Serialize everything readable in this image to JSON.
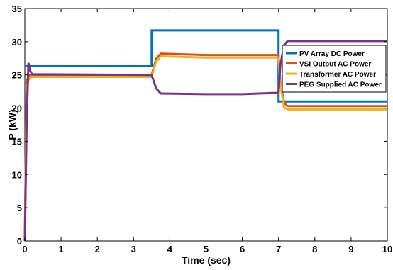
{
  "chart_data": {
    "type": "line",
    "xlabel": "Time (sec)",
    "ylabel": "P (kW)",
    "xlim": [
      0,
      10
    ],
    "ylim": [
      0,
      35
    ],
    "xticks": [
      0,
      1,
      2,
      3,
      4,
      5,
      6,
      7,
      8,
      9,
      10
    ],
    "yticks": [
      0,
      5,
      10,
      15,
      20,
      25,
      30,
      35
    ],
    "grid": false,
    "legend_position": "top-right",
    "series": [
      {
        "name": "PV Array DC Power",
        "color": "#0072BD",
        "x": [
          0,
          0.01,
          3.5,
          3.5,
          7.0,
          7.0,
          10
        ],
        "y": [
          26.3,
          26.3,
          26.3,
          31.7,
          31.7,
          21.0,
          21.0
        ]
      },
      {
        "name": "VSI Output AC Power",
        "color": "#D95319",
        "x": [
          0,
          0.05,
          0.1,
          0.15,
          0.2,
          3.5,
          3.62,
          3.75,
          5.0,
          6.0,
          7.0,
          7.05,
          7.15,
          7.25,
          10
        ],
        "y": [
          0,
          24.0,
          24.8,
          25.0,
          25.0,
          25.0,
          27.4,
          28.2,
          28.0,
          28.0,
          28.0,
          24.0,
          20.8,
          20.3,
          20.3
        ]
      },
      {
        "name": "Transformer AC Power",
        "color": "#EDB120",
        "x": [
          0,
          0.05,
          0.1,
          0.15,
          0.2,
          3.5,
          3.62,
          3.75,
          5.0,
          6.0,
          7.0,
          7.05,
          7.15,
          7.25,
          10
        ],
        "y": [
          0,
          23.0,
          24.2,
          24.6,
          24.7,
          24.7,
          27.0,
          27.8,
          27.6,
          27.6,
          27.6,
          23.5,
          20.1,
          19.8,
          19.8
        ]
      },
      {
        "name": "PEG Supplied AC Power",
        "color": "#7E2F8E",
        "x": [
          0,
          0.05,
          0.1,
          0.15,
          0.2,
          3.5,
          3.62,
          3.75,
          5.0,
          6.0,
          7.0,
          7.05,
          7.15,
          7.25,
          10
        ],
        "y": [
          0,
          18.0,
          26.8,
          25.6,
          25.1,
          25.0,
          23.0,
          22.2,
          22.1,
          22.1,
          22.3,
          26.5,
          29.5,
          30.1,
          30.1
        ]
      }
    ]
  }
}
